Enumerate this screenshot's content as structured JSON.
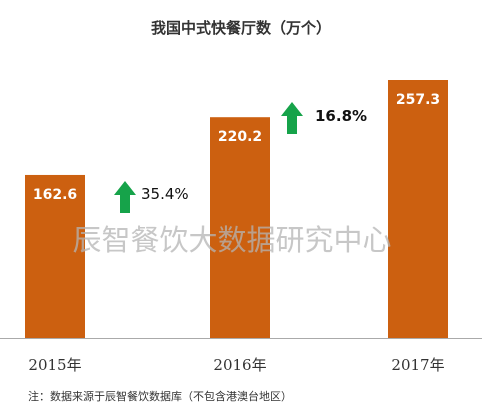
{
  "chart_data": {
    "type": "bar",
    "title": "我国中式快餐厅数（万个）",
    "categories": [
      "2015年",
      "2016年",
      "2017年"
    ],
    "values": [
      162.6,
      220.2,
      257.3
    ],
    "value_labels": [
      "162.6",
      "220.2",
      "257.3"
    ],
    "growth_labels": [
      "35.4%",
      "16.8%"
    ],
    "ylim": [
      0,
      257.3
    ],
    "grid": false,
    "legend": "none",
    "colors": {
      "bar": "#cc6010",
      "arrow": "#16a34a",
      "axis": "#aaaaaa"
    }
  },
  "watermark": "辰智餐饮大数据研究中心",
  "footnote": "注：数据来源于辰智餐饮数据库（不包含港澳台地区）"
}
